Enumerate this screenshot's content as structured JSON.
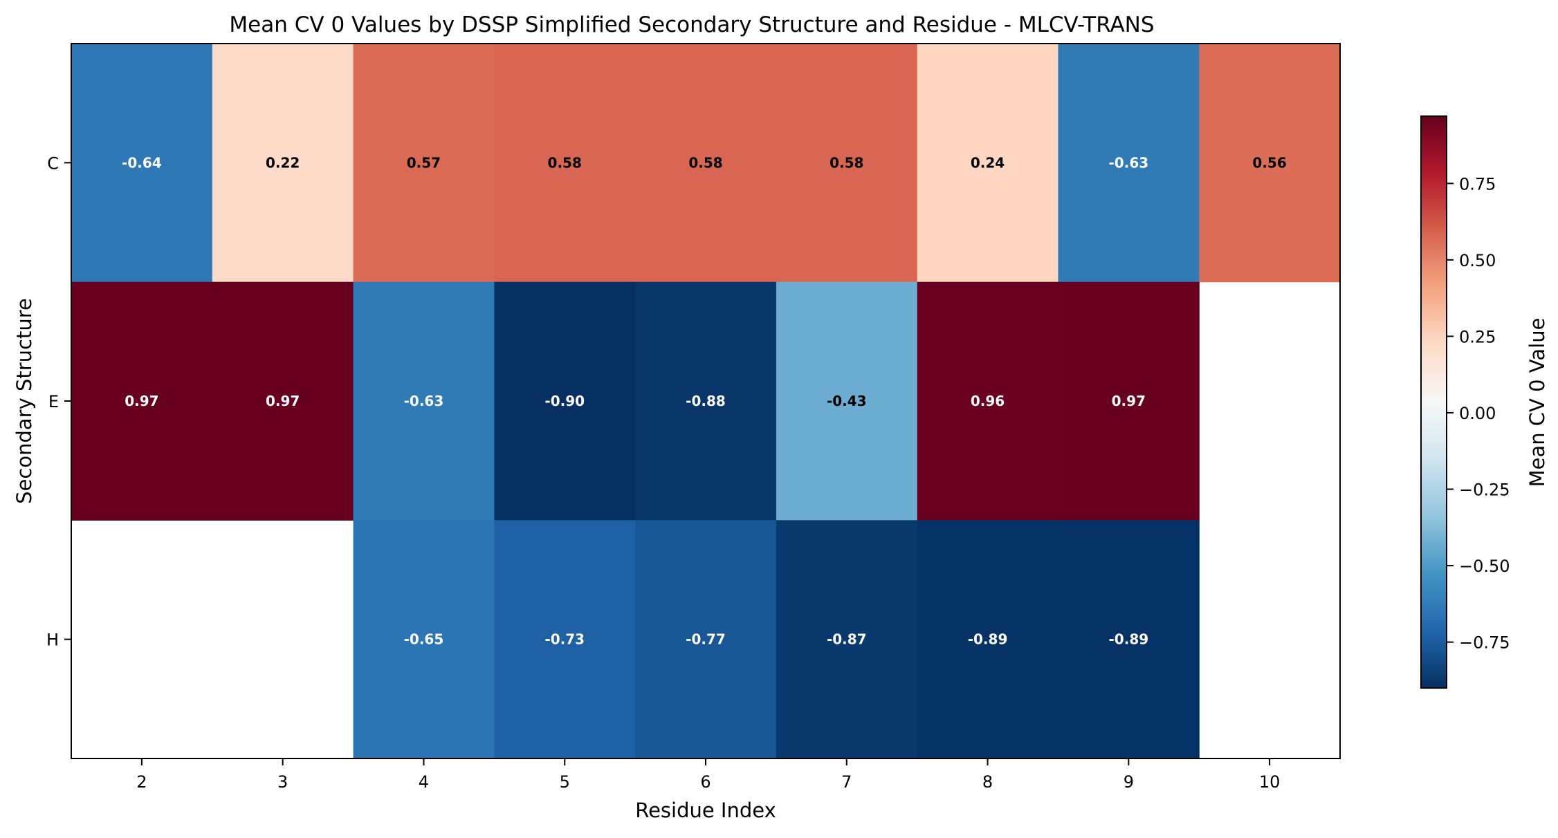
{
  "chart_data": {
    "type": "heatmap",
    "title": "Mean CV 0 Values by DSSP Simplified Secondary Structure and Residue - MLCV-TRANS",
    "xlabel": "Residue Index",
    "ylabel": "Secondary Structure",
    "x_categories": [
      "2",
      "3",
      "4",
      "5",
      "6",
      "7",
      "8",
      "9",
      "10"
    ],
    "y_categories": [
      "C",
      "E",
      "H"
    ],
    "values": [
      [
        -0.64,
        0.22,
        0.57,
        0.58,
        0.58,
        0.58,
        0.24,
        -0.63,
        0.56
      ],
      [
        0.97,
        0.97,
        -0.63,
        -0.9,
        -0.88,
        -0.43,
        0.96,
        0.97,
        null
      ],
      [
        null,
        null,
        -0.65,
        -0.73,
        -0.77,
        -0.87,
        -0.89,
        -0.89,
        null
      ]
    ],
    "value_format": "2 decimals",
    "colormap": "RdBu_r",
    "vmin": -0.9,
    "vmax": 0.97,
    "colorbar": {
      "label": "Mean CV 0 Value",
      "ticks": [
        "0.75",
        "0.50",
        "0.25",
        "0.00",
        "−0.25",
        "−0.50",
        "−0.75"
      ],
      "tick_values": [
        0.75,
        0.5,
        0.25,
        0.0,
        -0.25,
        -0.5,
        -0.75
      ]
    },
    "grid": false,
    "legend": "colorbar right"
  }
}
